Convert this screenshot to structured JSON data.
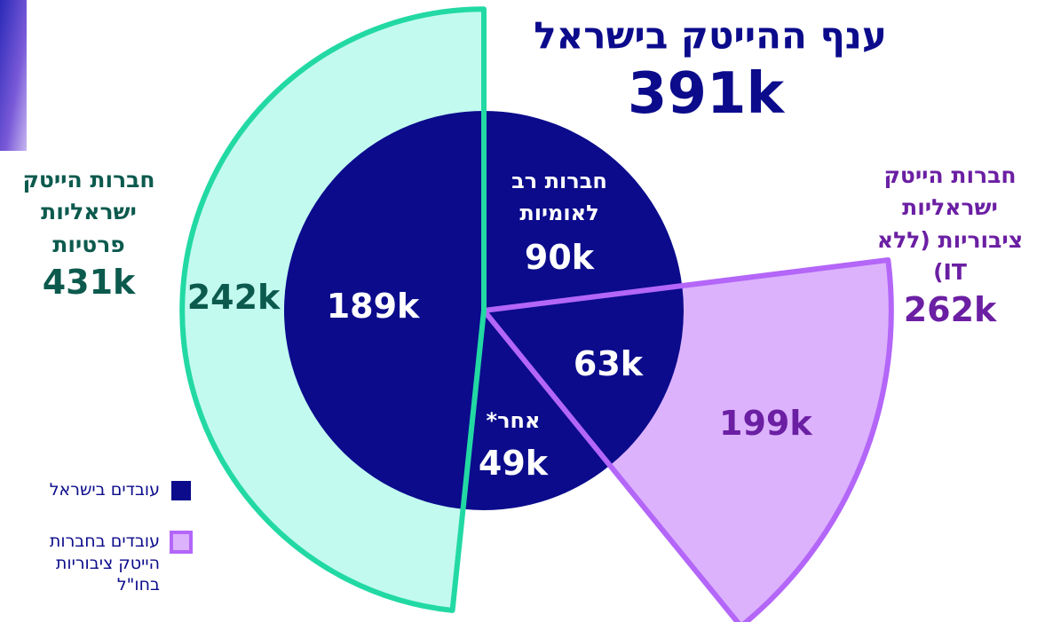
{
  "chart_data": {
    "type": "pie",
    "title": "ענף ההייטק בישראל",
    "total": 391,
    "total_label": "391k",
    "categories": [
      "חברות רב לאומיות",
      null,
      "אחר*",
      null
    ],
    "values": [
      90,
      63,
      49,
      189
    ],
    "value_labels": [
      "90k",
      "63k",
      "49k",
      "189k"
    ],
    "color": "#0b0b8c",
    "groups": [
      {
        "name": "חברות הייטק ישראליות ציבוריות (ללא IT)",
        "slice": 1,
        "total": 262,
        "total_label": "262k",
        "outer": 199,
        "outer_label": "199k",
        "color": "#dcb2fc",
        "stroke": "#b366f8",
        "text_color": "#6b1fa3"
      },
      {
        "name": "חברות הייטק ישראליות פרטיות",
        "slice": 3,
        "total": 431,
        "total_label": "431k",
        "outer": 242,
        "outer_label": "242k",
        "color": "#c2faf0",
        "stroke": "#22d9a4",
        "text_color": "#0c5a4e"
      }
    ],
    "legend": [
      {
        "label": "עובדים בישראל",
        "color": "#0b0b8c"
      },
      {
        "label": "עובדים בחברות הייטק ציבוריות בחו\"ל",
        "color": "#dcb2fc",
        "stroke": "#b366f8"
      }
    ]
  }
}
